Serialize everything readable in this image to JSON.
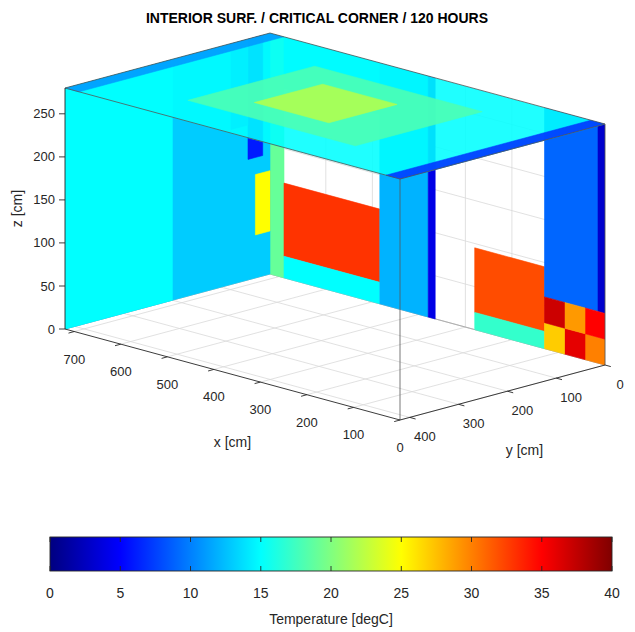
{
  "chart_data": {
    "type": "surface3d",
    "title": "INTERIOR SURF. / CRITICAL CORNER / 120 HOURS",
    "xlabel": "x [cm]",
    "ylabel": "y [cm]",
    "zlabel": "z [cm]",
    "xlim": [
      0,
      720
    ],
    "ylim": [
      0,
      420
    ],
    "zlim": [
      0,
      280
    ],
    "xticks": [
      0,
      100,
      200,
      300,
      400,
      500,
      600,
      700
    ],
    "yticks": [
      0,
      100,
      200,
      300,
      400
    ],
    "zticks": [
      0,
      50,
      100,
      150,
      200,
      250
    ],
    "grid": true,
    "clim": [
      0,
      40
    ],
    "cticks": [
      0,
      5,
      10,
      15,
      20,
      25,
      30,
      35,
      40
    ],
    "colorbar_label": "Temperature [degC]",
    "patches": [
      {
        "x": [
          690,
          720
        ],
        "y": [
          0,
          0
        ],
        "z": [
          0,
          280
        ],
        "value": 19
      },
      {
        "x": [
          484,
          690
        ],
        "y": [
          0,
          0
        ],
        "z": [
          220,
          280
        ],
        "value": 14
      },
      {
        "x": [
          484,
          690
        ],
        "y": [
          0,
          0
        ],
        "z": [
          25,
          110
        ],
        "value": 33
      },
      {
        "x": [
          484,
          690
        ],
        "y": [
          0,
          0
        ],
        "z": [
          0,
          25
        ],
        "value": 15
      },
      {
        "x": [
          380,
          484
        ],
        "y": [
          0,
          0
        ],
        "z": [
          0,
          280
        ],
        "value": 12
      },
      {
        "x": [
          365,
          380
        ],
        "y": [
          0,
          0
        ],
        "z": [
          0,
          280
        ],
        "value": 4
      },
      {
        "x": [
          130,
          280
        ],
        "y": [
          0,
          0
        ],
        "z": [
          20,
          95
        ],
        "value": 32
      },
      {
        "x": [
          130,
          280
        ],
        "y": [
          0,
          0
        ],
        "z": [
          0,
          20
        ],
        "value": 17
      },
      {
        "x": [
          15,
          130
        ],
        "y": [
          0,
          0
        ],
        "z": [
          60,
          280
        ],
        "value": 9
      },
      {
        "x": [
          0,
          15
        ],
        "y": [
          0,
          0
        ],
        "z": [
          60,
          280
        ],
        "value": 3
      },
      {
        "x": [
          0,
          43
        ],
        "y": [
          0,
          0
        ],
        "z": [
          0,
          30
        ],
        "value": 30
      },
      {
        "x": [
          43,
          87
        ],
        "y": [
          0,
          0
        ],
        "z": [
          0,
          30
        ],
        "value": 36
      },
      {
        "x": [
          87,
          130
        ],
        "y": [
          0,
          0
        ],
        "z": [
          0,
          30
        ],
        "value": 27
      },
      {
        "x": [
          0,
          43
        ],
        "y": [
          0,
          0
        ],
        "z": [
          30,
          60
        ],
        "value": 35
      },
      {
        "x": [
          43,
          87
        ],
        "y": [
          0,
          0
        ],
        "z": [
          30,
          60
        ],
        "value": 29
      },
      {
        "x": [
          87,
          130
        ],
        "y": [
          0,
          0
        ],
        "z": [
          30,
          60
        ],
        "value": 37
      },
      {
        "x": [
          720,
          720
        ],
        "y": [
          0,
          420
        ],
        "z": [
          0,
          280
        ],
        "value": 13
      },
      {
        "x": [
          720,
          720
        ],
        "y": [
          200,
          420
        ],
        "z": [
          0,
          280
        ],
        "value": 15
      },
      {
        "x": [
          720,
          720
        ],
        "y": [
          15,
          45
        ],
        "z": [
          140,
          280
        ],
        "value": 6
      },
      {
        "x": [
          720,
          720
        ],
        "y": [
          0,
          30
        ],
        "z": [
          50,
          120
        ],
        "value": 25
      },
      {
        "x": [
          720,
          720
        ],
        "y": [
          45,
          80
        ],
        "z": [
          180,
          280
        ],
        "value": 10
      },
      {
        "x": [
          0,
          720
        ],
        "y": [
          0,
          420
        ],
        "z": [
          280,
          280
        ],
        "value": 15
      },
      {
        "x": [
          180,
          540
        ],
        "y": [
          80,
          340
        ],
        "z": [
          280,
          280
        ],
        "value": 18
      },
      {
        "x": [
          300,
          460
        ],
        "y": [
          140,
          280
        ],
        "z": [
          280,
          280
        ],
        "value": 22
      },
      {
        "x": [
          0,
          30
        ],
        "y": [
          0,
          420
        ],
        "z": [
          280,
          280
        ],
        "value": 7
      },
      {
        "x": [
          690,
          720
        ],
        "y": [
          0,
          420
        ],
        "z": [
          280,
          280
        ],
        "value": 11
      }
    ]
  }
}
